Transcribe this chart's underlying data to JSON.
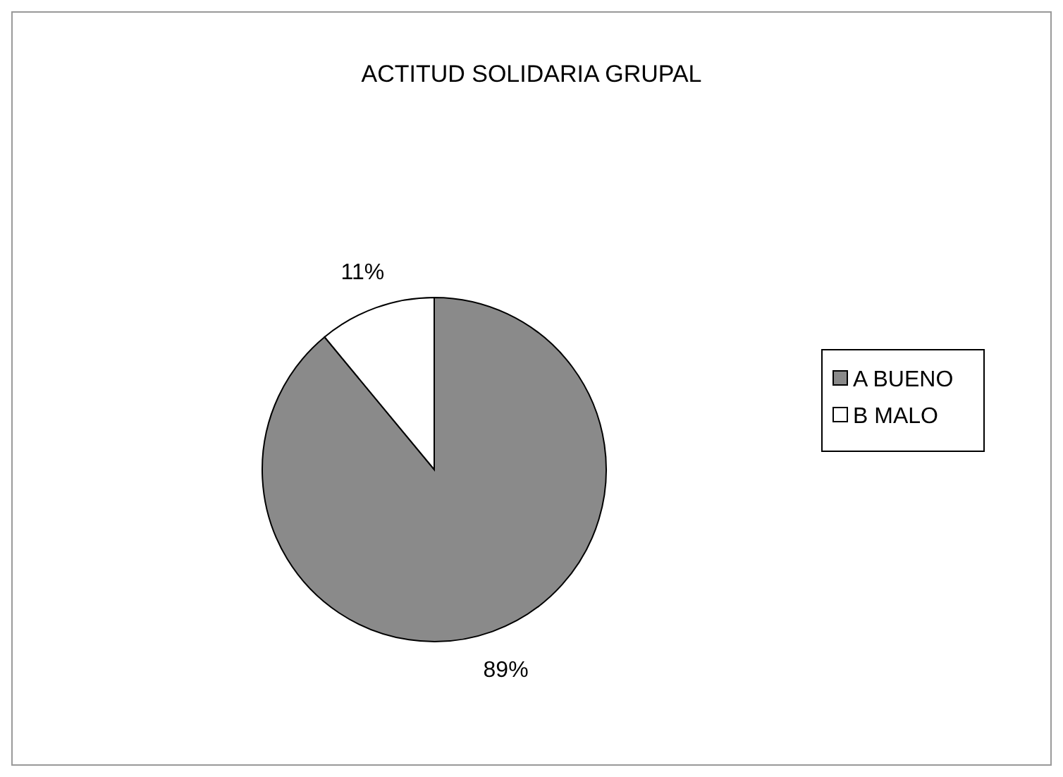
{
  "chart_data": {
    "type": "pie",
    "title": "ACTITUD SOLIDARIA GRUPAL",
    "categories": [
      "A BUENO",
      "B MALO"
    ],
    "values": [
      89,
      11
    ],
    "colors": [
      "#8a8a8a",
      "#ffffff"
    ],
    "legend": "right",
    "value_labels": [
      "89%",
      "11%"
    ]
  }
}
